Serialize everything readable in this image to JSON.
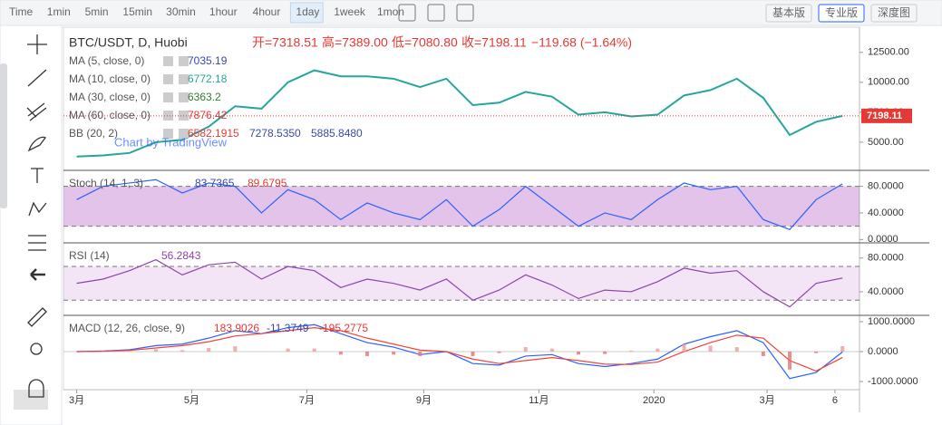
{
  "toolbar": {
    "intervals": [
      "Time",
      "1min",
      "5min",
      "15min",
      "30min",
      "1hour",
      "4hour",
      "1day",
      "1week",
      "1mon"
    ],
    "active": 7,
    "buttons": [
      "基本版",
      "专业版",
      "深度图"
    ],
    "active_button": 1
  },
  "chart_data": [
    {
      "type": "line",
      "title": "BTC/USDT, D, Huobi",
      "ohlc": [
        "开=7318.51",
        "高=7389.00",
        "低=7080.80",
        "收=7198.11",
        "−119.68 (−1.64%)"
      ],
      "legend": [
        {
          "name": "MA (5, close, 0)",
          "values": [
            "7035.19"
          ]
        },
        {
          "name": "MA (10, close, 0)",
          "values": [
            "6772.18"
          ]
        },
        {
          "name": "MA (30, close, 0)",
          "values": [
            "6363.2"
          ]
        },
        {
          "name": "MA (60, close, 0)",
          "values": [
            "7876.42"
          ]
        },
        {
          "name": "BB (20, 2)",
          "values": [
            "6582.1915",
            "7278.5350",
            "5885.8480"
          ]
        }
      ],
      "watermark": "Chart by TradingView",
      "x": [
        0,
        14,
        28,
        42,
        56,
        70,
        84,
        98,
        112,
        126,
        140,
        154,
        168,
        182,
        196,
        210,
        224,
        238,
        252,
        266,
        280,
        294,
        308,
        322,
        336,
        350,
        364,
        378,
        392,
        406
      ],
      "series": [
        {
          "color": "#26a69a",
          "values": [
            3800,
            3900,
            4100,
            5000,
            5200,
            6300,
            8000,
            7800,
            10000,
            11000,
            10500,
            10500,
            10300,
            9600,
            10300,
            8100,
            8300,
            9200,
            8800,
            7300,
            7500,
            7150,
            7300,
            8900,
            9350,
            10300,
            8700,
            5600,
            6700,
            7198.11
          ]
        }
      ],
      "xlim": [
        -7,
        415
      ],
      "xticks": [
        {
          "value": 0,
          "label": "3月"
        },
        {
          "value": 61,
          "label": "5月"
        },
        {
          "value": 122,
          "label": "7月"
        },
        {
          "value": 184,
          "label": "9月"
        },
        {
          "value": 245,
          "label": "11月"
        },
        {
          "value": 306,
          "label": "2020"
        },
        {
          "value": 366,
          "label": "3月"
        },
        {
          "value": 402,
          "label": "6"
        }
      ],
      "ylim": [
        2650,
        14600
      ],
      "yticks": [
        {
          "value": 12500,
          "label": "12500.00"
        },
        {
          "value": 10000,
          "label": "10000.00"
        },
        {
          "value": 7500,
          "label": "7500.00"
        },
        {
          "value": 5000,
          "label": "5000.00"
        }
      ]
    },
    {
      "type": "line",
      "title": "Stoch (14, 1, 3)",
      "legend_values": [
        "83.7365",
        "89.6795"
      ],
      "x": [
        0,
        14,
        28,
        42,
        56,
        70,
        84,
        98,
        112,
        126,
        140,
        154,
        168,
        182,
        196,
        210,
        224,
        238,
        252,
        266,
        280,
        294,
        308,
        322,
        336,
        350,
        364,
        378,
        392,
        406
      ],
      "series": [
        {
          "color": "#2962ff",
          "values": [
            60,
            80,
            85,
            90,
            70,
            85,
            80,
            40,
            75,
            60,
            30,
            55,
            40,
            30,
            60,
            20,
            45,
            80,
            50,
            20,
            40,
            30,
            60,
            85,
            75,
            80,
            30,
            15,
            60,
            83.7365
          ]
        }
      ],
      "bands": [
        20,
        80
      ],
      "band_color": "#9c27b0",
      "ylim": [
        -5,
        104
      ],
      "yticks": [
        {
          "value": 80,
          "label": "80.0000"
        },
        {
          "value": 40,
          "label": "40.0000"
        },
        {
          "value": 0,
          "label": "0.0000"
        }
      ]
    },
    {
      "type": "line",
      "title": "RSI (14)",
      "legend_values": [
        "56.2843"
      ],
      "x": [
        0,
        14,
        28,
        42,
        56,
        70,
        84,
        98,
        112,
        126,
        140,
        154,
        168,
        182,
        196,
        210,
        224,
        238,
        252,
        266,
        280,
        294,
        308,
        322,
        336,
        350,
        364,
        378,
        392,
        406
      ],
      "series": [
        {
          "color": "#8e44ad",
          "values": [
            50,
            55,
            65,
            78,
            60,
            72,
            75,
            55,
            70,
            65,
            45,
            55,
            50,
            42,
            55,
            30,
            42,
            60,
            48,
            32,
            42,
            40,
            52,
            68,
            62,
            65,
            40,
            22,
            50,
            56.2843
          ]
        }
      ],
      "bands": [
        30,
        70
      ],
      "band_color": "#9c27b0",
      "ylim": [
        12,
        98
      ],
      "yticks": [
        {
          "value": 80,
          "label": "80.0000"
        },
        {
          "value": 40,
          "label": "40.0000"
        }
      ]
    },
    {
      "type": "line",
      "title": "MACD (12, 26, close, 9)",
      "legend_values": [
        "183.9026",
        "-11.3749",
        "-195.2775"
      ],
      "x": [
        0,
        14,
        28,
        42,
        56,
        70,
        84,
        98,
        112,
        126,
        140,
        154,
        168,
        182,
        196,
        210,
        224,
        238,
        252,
        266,
        280,
        294,
        308,
        322,
        336,
        350,
        364,
        378,
        392,
        406
      ],
      "series": [
        {
          "color": "#2962ff",
          "values": [
            0,
            20,
            60,
            200,
            250,
            450,
            700,
            600,
            800,
            900,
            600,
            300,
            150,
            -100,
            0,
            -400,
            -450,
            -150,
            -100,
            -400,
            -500,
            -400,
            -250,
            250,
            500,
            700,
            300,
            -900,
            -700,
            -11.3749
          ]
        },
        {
          "color": "#f44336",
          "values": [
            0,
            10,
            40,
            120,
            200,
            330,
            520,
            600,
            700,
            800,
            700,
            450,
            250,
            50,
            0,
            -250,
            -400,
            -300,
            -200,
            -300,
            -420,
            -430,
            -350,
            0,
            300,
            550,
            450,
            -300,
            -650,
            -195.2775
          ]
        }
      ],
      "ylim": [
        -1273,
        1212
      ],
      "yticks": [
        {
          "value": 1000,
          "label": "1000.0000"
        },
        {
          "value": 0,
          "label": "0.0000"
        },
        {
          "value": -1000,
          "label": "-1000.0000"
        }
      ]
    }
  ]
}
